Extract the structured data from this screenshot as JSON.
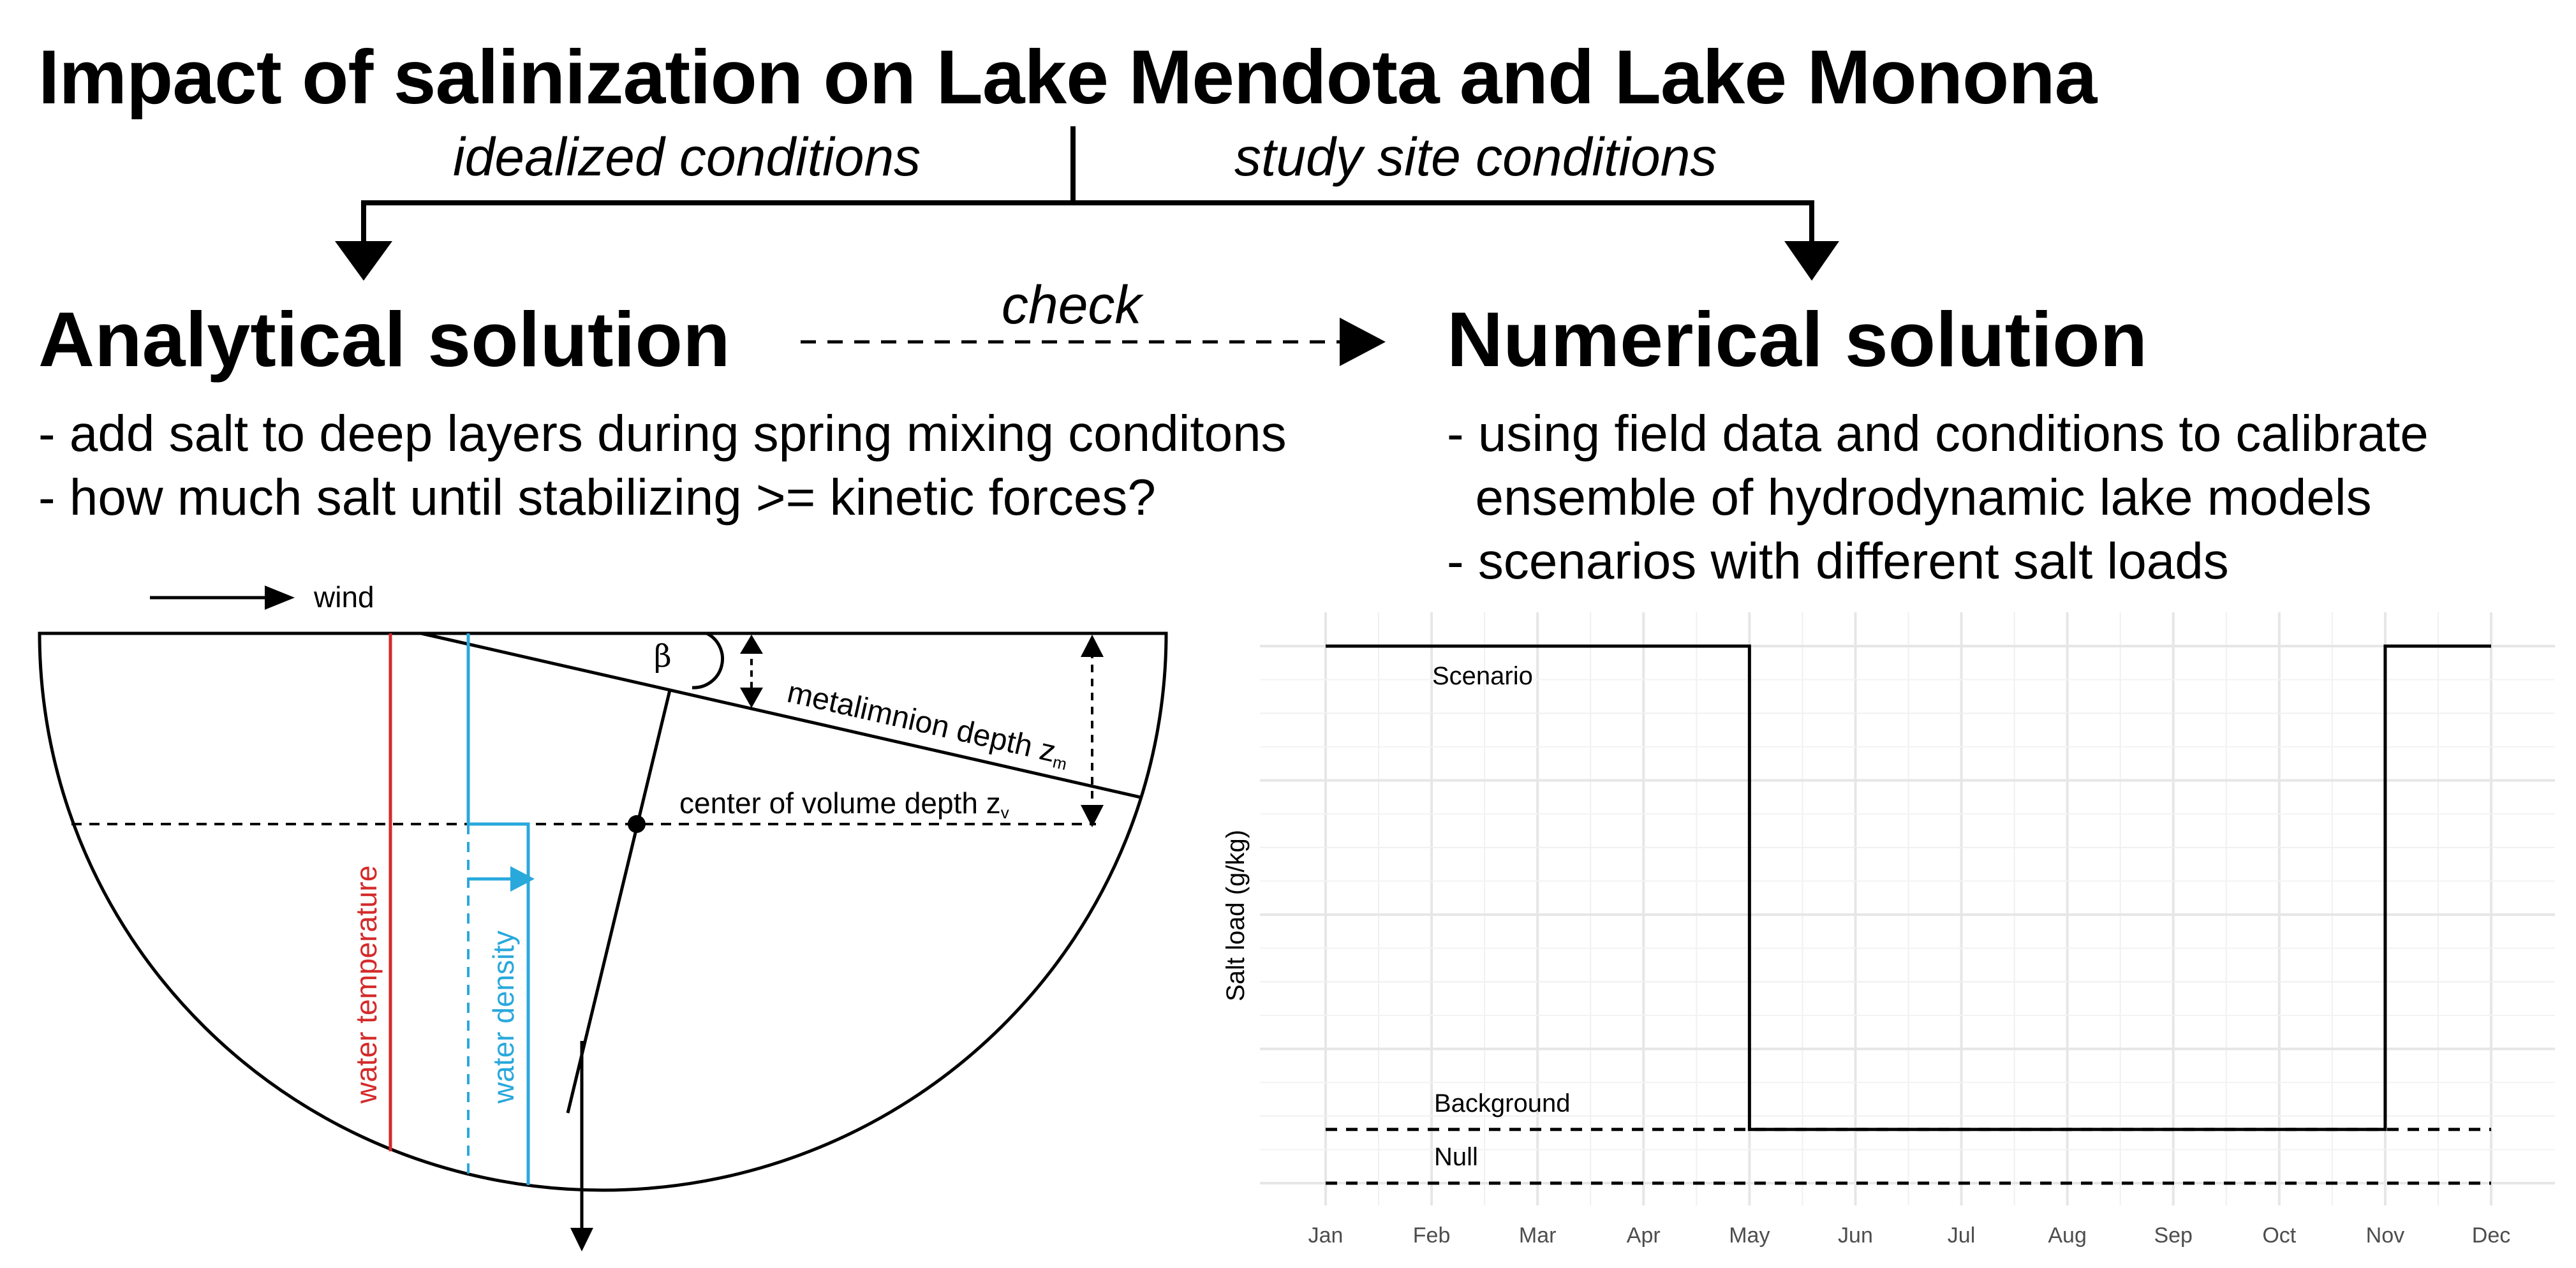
{
  "title": "Impact of salinization on Lake Mendota and Lake Monona",
  "branches": {
    "left": "idealized conditions",
    "right": "study site conditions"
  },
  "check_label": "check",
  "analytical": {
    "heading": "Analytical solution",
    "bullets": [
      "- add salt to deep layers during spring mixing conditons",
      "- how much salt until stabilizing >= kinetic forces?"
    ]
  },
  "numerical": {
    "heading": "Numerical solution",
    "bullets": [
      "- using field data and conditions to calibrate",
      "  ensemble of hydrodynamic lake models",
      "- scenarios with different salt loads"
    ]
  },
  "lake_diagram": {
    "wind_label": "wind",
    "beta_label": "β",
    "metalimnion_label": "metalimnion depth z",
    "metalimnion_sub": "m",
    "center_label": "center of volume depth z",
    "center_sub": "v",
    "temperature_label": "water temperature",
    "density_label": "water density",
    "colors": {
      "temperature": "#d42a2a",
      "density": "#29a8dc",
      "line": "#000000"
    }
  },
  "chart_data": {
    "type": "line",
    "title": "",
    "xlabel": "",
    "ylabel": "Salt load (g/kg)",
    "categories": [
      "Jan",
      "Feb",
      "Mar",
      "Apr",
      "May",
      "Jun",
      "Jul",
      "Aug",
      "Sep",
      "Oct",
      "Nov",
      "Dec"
    ],
    "ylim": [
      0,
      1
    ],
    "grid": true,
    "series": [
      {
        "name": "Scenario",
        "style": "solid",
        "x": [
          1,
          5,
          5,
          11,
          11,
          12
        ],
        "y": [
          1,
          1,
          0.1,
          0.1,
          1,
          1
        ]
      },
      {
        "name": "Background",
        "style": "dashed",
        "x": [
          1,
          12
        ],
        "y": [
          0.1,
          0.1
        ]
      },
      {
        "name": "Null",
        "style": "dashed",
        "x": [
          1,
          12
        ],
        "y": [
          0,
          0
        ]
      }
    ]
  }
}
